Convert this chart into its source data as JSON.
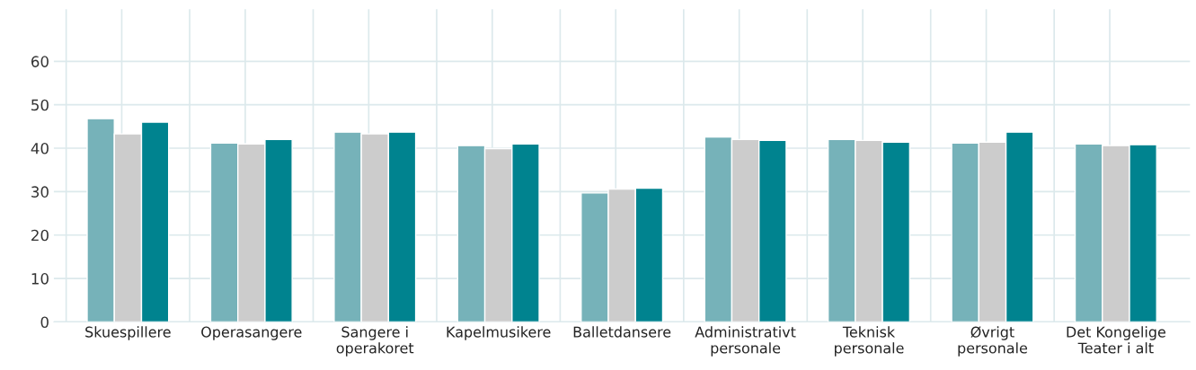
{
  "chart_data": {
    "type": "bar",
    "categories": [
      "Skuespillere",
      "Operasangere",
      "Sangere i\noperakoret",
      "Kapelmusikere",
      "Balletdansere",
      "Administrativt\npersonale",
      "Teknisk\npersonale",
      "Øvrigt\npersonale",
      "Det Kongelige\nTeater i alt"
    ],
    "series": [
      {
        "color": "#76b2b9",
        "values": [
          46.8,
          41.2,
          43.7,
          40.6,
          29.7,
          42.6,
          42.0,
          41.2,
          41.0
        ]
      },
      {
        "color": "#cccccc",
        "values": [
          43.3,
          41.0,
          43.3,
          39.9,
          30.6,
          42.0,
          41.8,
          41.4,
          40.6
        ]
      },
      {
        "color": "#00838f",
        "values": [
          46.0,
          42.0,
          43.7,
          41.0,
          30.8,
          41.8,
          41.4,
          43.7,
          40.8
        ]
      }
    ],
    "ylim": [
      0,
      72
    ],
    "yticks": [
      0,
      10,
      20,
      30,
      40,
      50,
      60
    ],
    "grid": true,
    "legend": false
  }
}
